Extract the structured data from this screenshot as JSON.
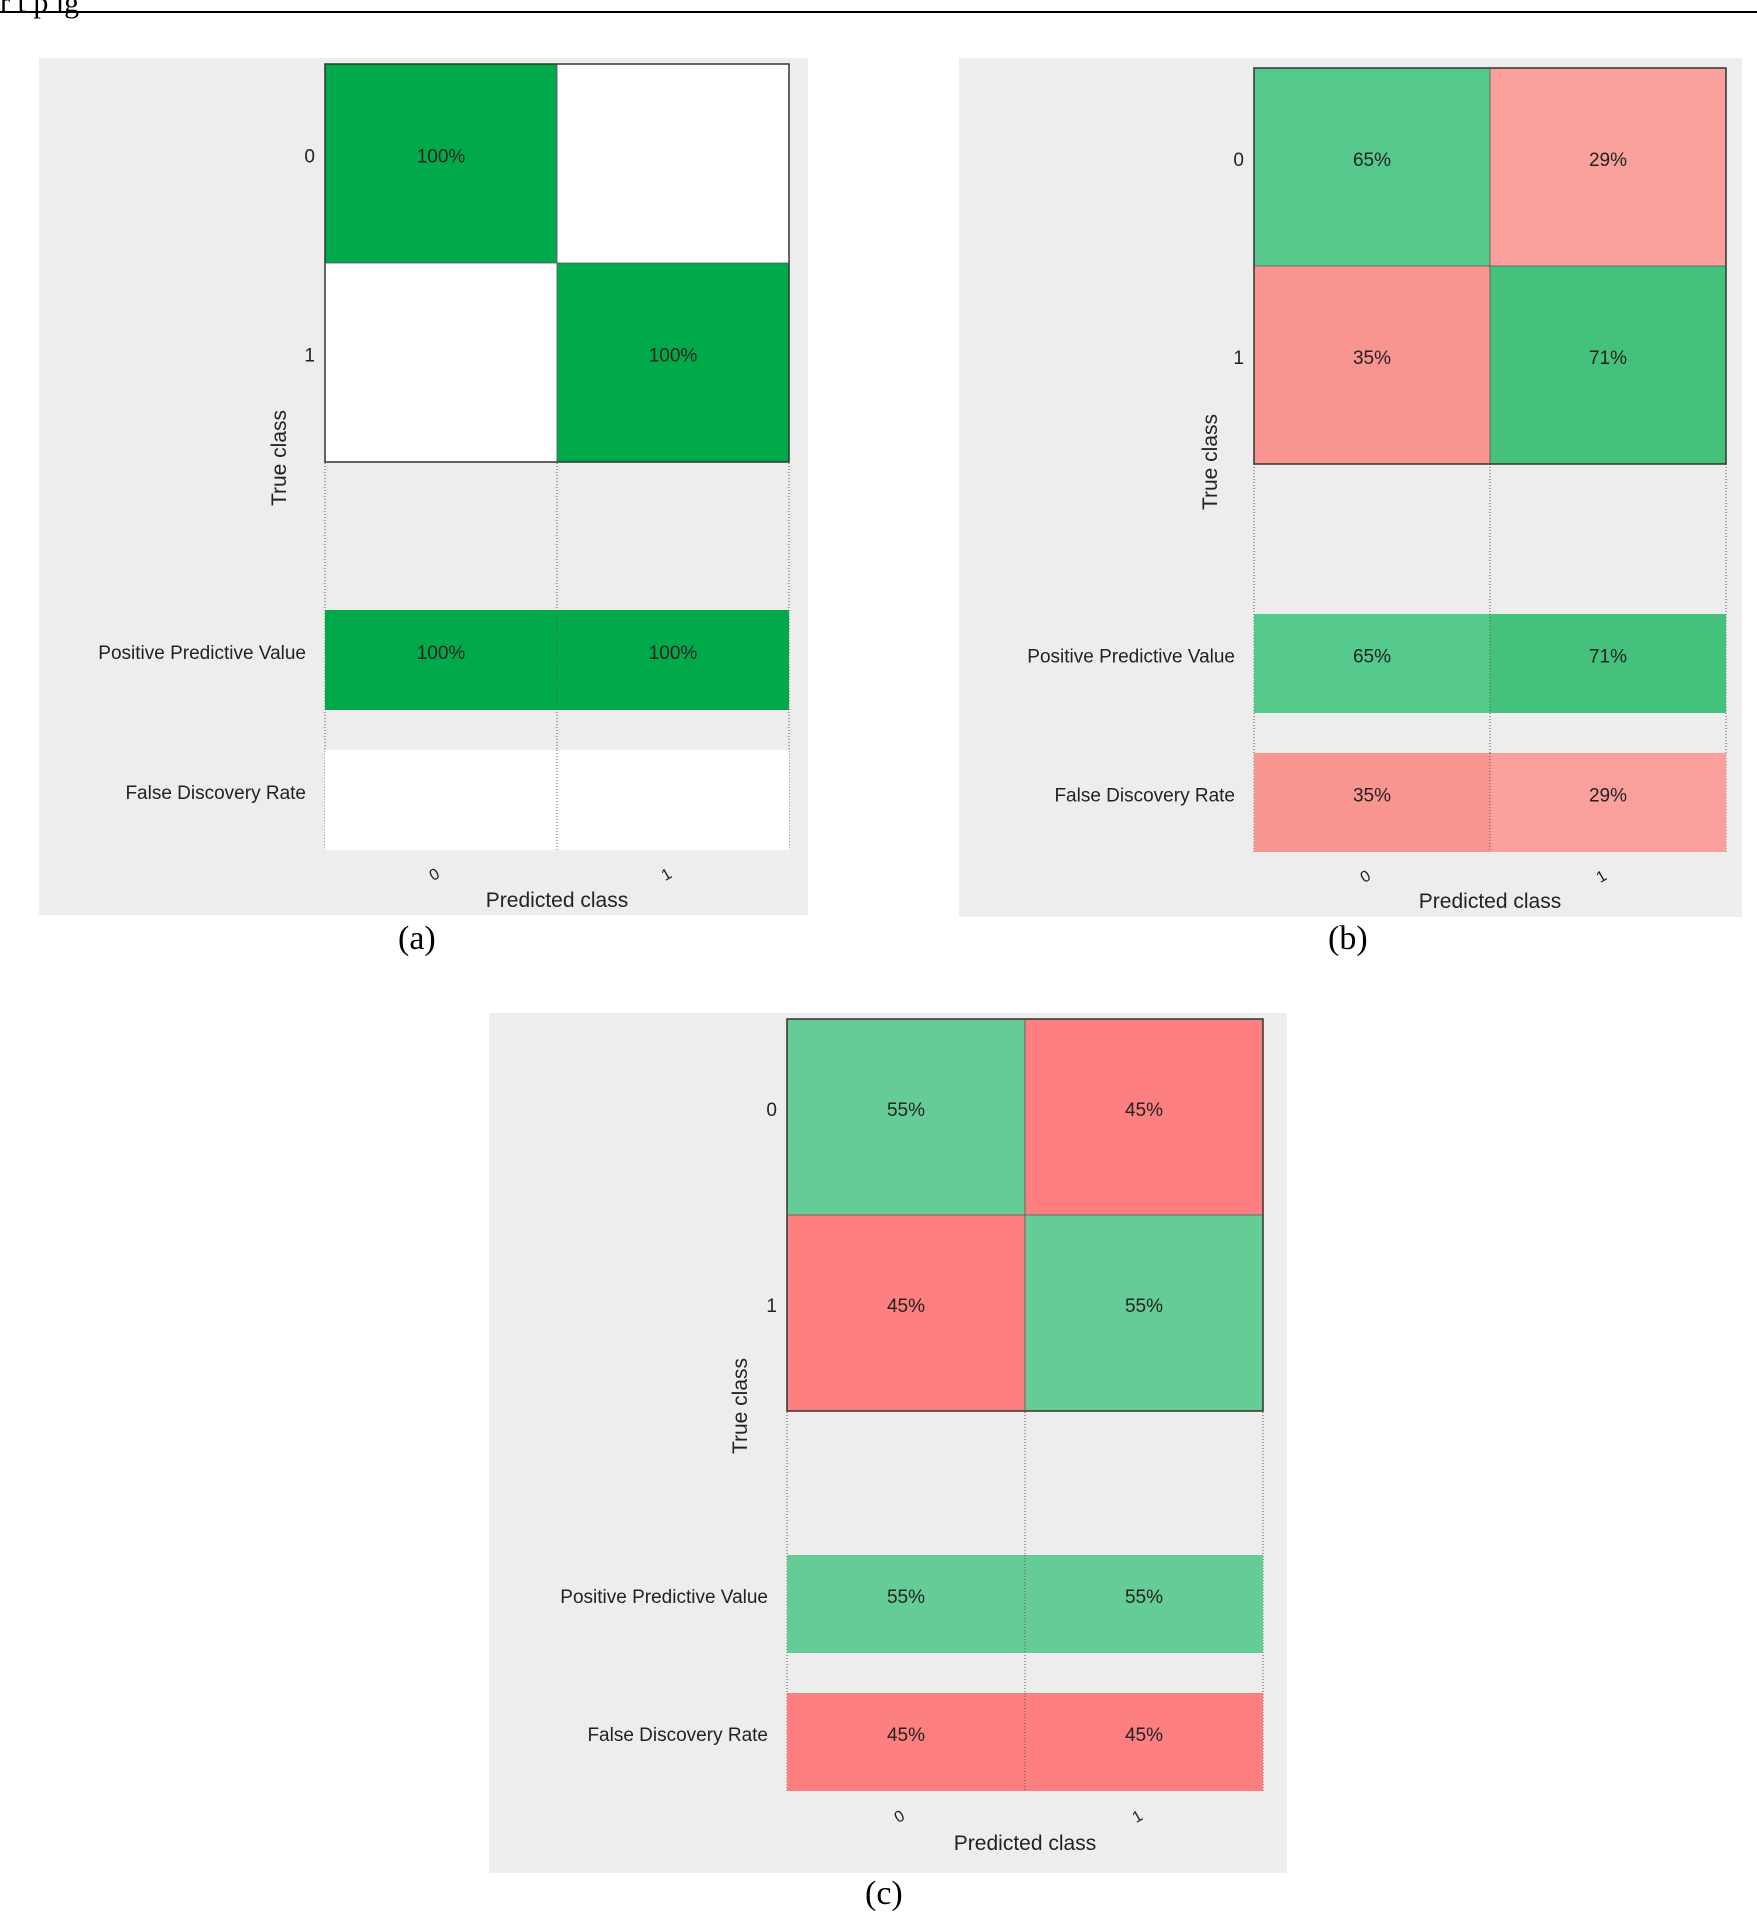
{
  "header_fragment": "r  t   p   lg",
  "colors": {
    "bg": "#ededed",
    "dark_green": "#00aa4a",
    "green_b_diag0": "#55c98b",
    "green_b_diag1": "#44c17a",
    "green_c": "#66cc96",
    "pink_b_offdiag0": "#f9a09c",
    "pink_b_offdiag1": "#f99590",
    "red_c": "#fd7f7f",
    "white": "#ffffff"
  },
  "chart_data": [
    {
      "type": "heatmap",
      "panel_label": "(a)",
      "xlabel": "Predicted class",
      "ylabel": "True class",
      "x_ticks": [
        "0",
        "1"
      ],
      "y_ticks": [
        "0",
        "1"
      ],
      "matrix": [
        [
          "100%",
          ""
        ],
        [
          "",
          "100%"
        ]
      ],
      "matrix_colors": [
        [
          "#00aa4a",
          "#ffffff"
        ],
        [
          "#ffffff",
          "#00aa4a"
        ]
      ],
      "summary_rows": [
        {
          "label": "Positive Predictive Value",
          "values": [
            "100%",
            "100%"
          ],
          "colors": [
            "#00aa4a",
            "#00aa4a"
          ]
        },
        {
          "label": "False Discovery Rate",
          "values": [
            "",
            ""
          ],
          "colors": [
            "#ffffff",
            "#ffffff"
          ]
        }
      ]
    },
    {
      "type": "heatmap",
      "panel_label": "(b)",
      "xlabel": "Predicted class",
      "ylabel": "True class",
      "x_ticks": [
        "0",
        "1"
      ],
      "y_ticks": [
        "0",
        "1"
      ],
      "matrix": [
        [
          "65%",
          "29%"
        ],
        [
          "35%",
          "71%"
        ]
      ],
      "matrix_colors": [
        [
          "#55c98b",
          "#f9a09c"
        ],
        [
          "#f99590",
          "#44c17a"
        ]
      ],
      "summary_rows": [
        {
          "label": "Positive Predictive Value",
          "values": [
            "65%",
            "71%"
          ],
          "colors": [
            "#55c98b",
            "#44c17a"
          ]
        },
        {
          "label": "False Discovery Rate",
          "values": [
            "35%",
            "29%"
          ],
          "colors": [
            "#f99590",
            "#f9a09c"
          ]
        }
      ]
    },
    {
      "type": "heatmap",
      "panel_label": "(c)",
      "xlabel": "Predicted class",
      "ylabel": "True class",
      "x_ticks": [
        "0",
        "1"
      ],
      "y_ticks": [
        "0",
        "1"
      ],
      "matrix": [
        [
          "55%",
          "45%"
        ],
        [
          "45%",
          "55%"
        ]
      ],
      "matrix_colors": [
        [
          "#66cc96",
          "#fd7f7f"
        ],
        [
          "#fd7f7f",
          "#66cc96"
        ]
      ],
      "summary_rows": [
        {
          "label": "Positive Predictive Value",
          "values": [
            "55%",
            "55%"
          ],
          "colors": [
            "#66cc96",
            "#66cc96"
          ]
        },
        {
          "label": "False Discovery Rate",
          "values": [
            "45%",
            "45%"
          ],
          "colors": [
            "#fd7f7f",
            "#fd7f7f"
          ]
        }
      ]
    }
  ]
}
